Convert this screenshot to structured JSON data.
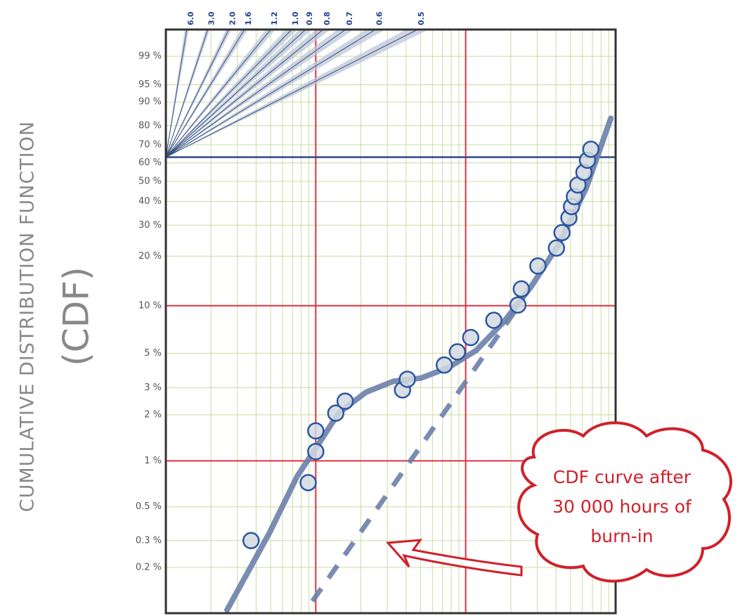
{
  "chart_data": {
    "type": "scatter",
    "y_title": "CUMULATIVE DISTRIBUTION FUNCTION",
    "y_title_abbrev": "(CDF)",
    "xscale": "log",
    "yscale": "weibull",
    "xlim": [
      1,
      1000
    ],
    "ylim": [
      0.1,
      99.9
    ],
    "xgrid": [
      2,
      3,
      4,
      5,
      6,
      7,
      8,
      9,
      20,
      30,
      40,
      50,
      60,
      70,
      80,
      90,
      200,
      300,
      400,
      500,
      600,
      700,
      800,
      900
    ],
    "xgrid_major": [
      10,
      100
    ],
    "ygrid_major": [
      1,
      10
    ],
    "characteristic_line": 63.2,
    "yticks": [
      {
        "value": 99,
        "label": "99 %"
      },
      {
        "value": 95,
        "label": "95 %"
      },
      {
        "value": 90,
        "label": "90 %"
      },
      {
        "value": 80,
        "label": "80 %"
      },
      {
        "value": 70,
        "label": "70 %"
      },
      {
        "value": 60,
        "label": "60 %"
      },
      {
        "value": 50,
        "label": "50 %"
      },
      {
        "value": 40,
        "label": "40 %"
      },
      {
        "value": 30,
        "label": "30 %"
      },
      {
        "value": 20,
        "label": "20 %"
      },
      {
        "value": 10,
        "label": "10 %"
      },
      {
        "value": 5,
        "label": "5 %"
      },
      {
        "value": 3,
        "label": "3 %"
      },
      {
        "value": 2,
        "label": "2 %"
      },
      {
        "value": 1,
        "label": "1 %"
      },
      {
        "value": 0.5,
        "label": "0.5 %"
      },
      {
        "value": 0.3,
        "label": "0.3 %"
      },
      {
        "value": 0.2,
        "label": "0.2 %"
      }
    ],
    "slopes": [
      {
        "value": 6,
        "label": "6.0"
      },
      {
        "value": 3,
        "label": "3.0"
      },
      {
        "value": 2,
        "label": "2.0"
      },
      1.6,
      1.2,
      {
        "value": 1,
        "label": "1.0"
      },
      0.9,
      0.8,
      0.7,
      0.6,
      0.5
    ],
    "points": {
      "color": "#2a56a0",
      "x": [
        3.7,
        8.9,
        10,
        10,
        13.6,
        15.7,
        37.9,
        40.8,
        72,
        88,
        108,
        154,
        223,
        235,
        303,
        403,
        439,
        488,
        508,
        531,
        560,
        615,
        649,
        684
      ],
      "y": [
        0.3,
        0.72,
        1.15,
        1.57,
        2.05,
        2.45,
        2.9,
        3.4,
        4.2,
        5.1,
        6.3,
        8.1,
        10.1,
        12.7,
        17.5,
        22.3,
        27.3,
        32.9,
        37.7,
        42.3,
        48.1,
        54.8,
        61.5,
        67.6
      ]
    },
    "fit_curve": {
      "color": "#6c80a8",
      "x": [
        2.56,
        4.93,
        7.5,
        10,
        14.2,
        21.6,
        33,
        50.3,
        76.8,
        117,
        179,
        273,
        416,
        635,
        929
      ],
      "y": [
        0.105,
        0.34,
        0.79,
        1.21,
        2.05,
        2.8,
        3.3,
        3.46,
        4.05,
        5.2,
        7.9,
        13.1,
        23.3,
        46.3,
        83.5
      ]
    },
    "burn_in_line": {
      "color": "#6c80a8",
      "x": [
        9.5,
        221
      ],
      "y": [
        0.12,
        9.7
      ]
    },
    "annotation": [
      "CDF curve after",
      "30 000 hours of",
      "burn-in"
    ],
    "annotation_color": "#d0202a"
  }
}
